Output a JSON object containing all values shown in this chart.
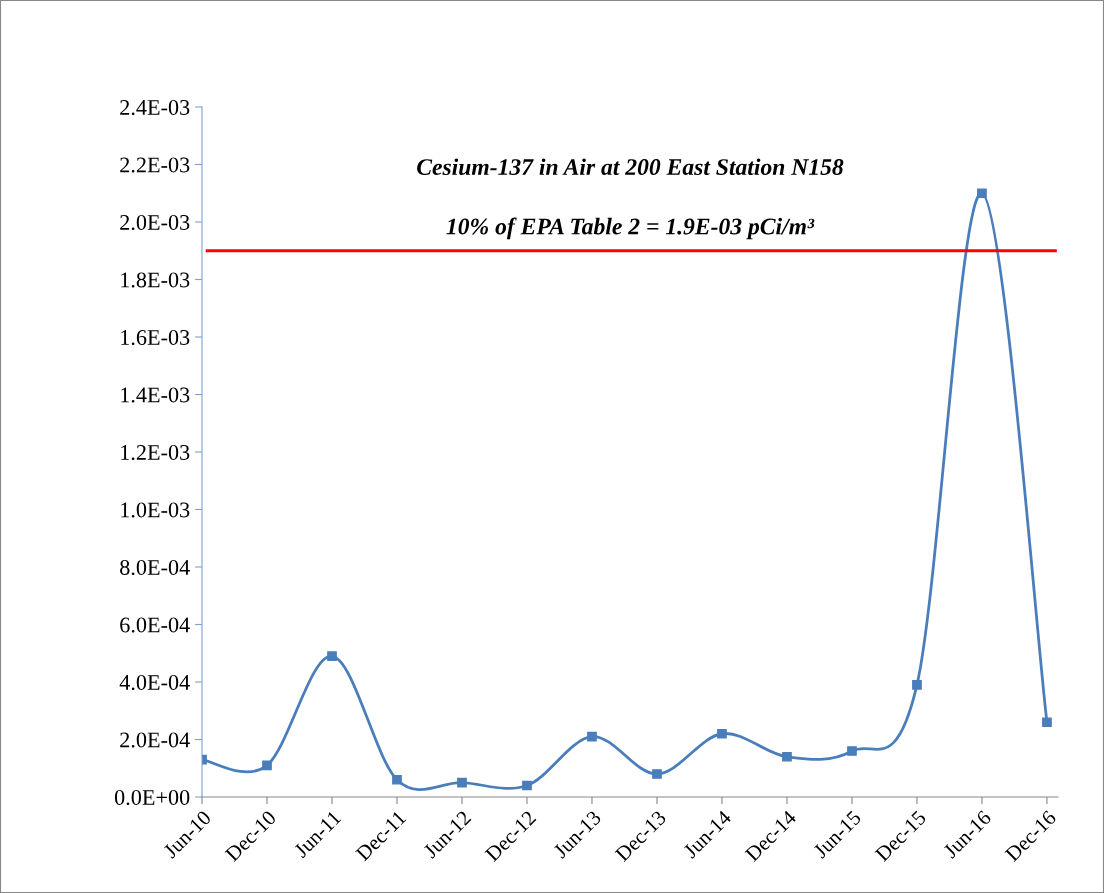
{
  "chart_data": {
    "type": "line",
    "title": "Cesium-137 in Air at 200 East Station N158",
    "categories": [
      "Jun-10",
      "Dec-10",
      "Jun-11",
      "Dec-11",
      "Jun-12",
      "Dec-12",
      "Jun-13",
      "Dec-13",
      "Jun-14",
      "Dec-14",
      "Jun-15",
      "Dec-15",
      "Jun-16",
      "Dec-16"
    ],
    "series": [
      {
        "color": "#4a7ebb",
        "values": [
          0.00013,
          0.00011,
          0.00049,
          6e-05,
          5e-05,
          4e-05,
          0.00021,
          8e-05,
          0.00022,
          0.00014,
          0.00016,
          0.00039,
          0.0021,
          0.00026
        ]
      }
    ],
    "ylim": [
      0,
      0.0024
    ],
    "yticks": [
      {
        "value": 0,
        "label": "0.0E+00"
      },
      {
        "value": 0.0002,
        "label": "2.0E-04"
      },
      {
        "value": 0.0004,
        "label": "4.0E-04"
      },
      {
        "value": 0.0006,
        "label": "6.0E-04"
      },
      {
        "value": 0.0008,
        "label": "8.0E-04"
      },
      {
        "value": 0.001,
        "label": "1.0E-03"
      },
      {
        "value": 0.0012,
        "label": "1.2E-03"
      },
      {
        "value": 0.0014,
        "label": "1.4E-03"
      },
      {
        "value": 0.0016,
        "label": "1.6E-03"
      },
      {
        "value": 0.0018,
        "label": "1.8E-03"
      },
      {
        "value": 0.002,
        "label": "2.0E-03"
      },
      {
        "value": 0.0022,
        "label": "2.2E-03"
      },
      {
        "value": 0.0024,
        "label": "2.4E-03"
      }
    ],
    "ref_lines": [
      {
        "axis": "y",
        "value": 0.0019,
        "label": "10% of EPA Table 2 = 1.9E-03 pCi/m³",
        "color": "#ff0000"
      }
    ],
    "grid": false,
    "legend": false,
    "marker": "square",
    "line_style": "solid"
  }
}
